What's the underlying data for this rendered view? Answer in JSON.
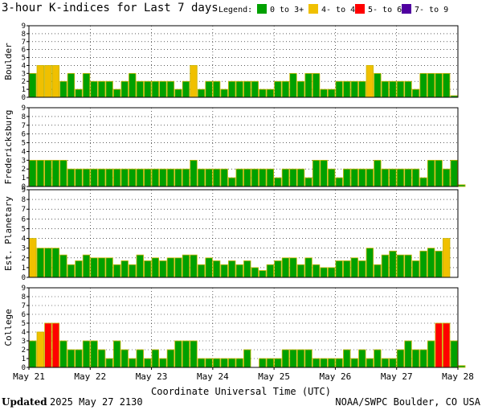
{
  "title": "3-hour K-indices for Last 7 days",
  "legend": {
    "label": "Legend:",
    "items": [
      {
        "label": "0 to 3+",
        "color": "#00a000"
      },
      {
        "label": "4- to 4+",
        "color": "#f0c000"
      },
      {
        "label": "5- to 6+",
        "color": "#ff0000"
      },
      {
        "label": "7- to 9",
        "color": "#5000a0"
      }
    ]
  },
  "colors": {
    "quiet": "#00a000",
    "active": "#f0c000",
    "storm": "#ff0000",
    "severe": "#5000a0",
    "bar_outline": "#c8b400",
    "grid": "#000000"
  },
  "xaxis": {
    "label": "Coordinate Universal Time (UTC)",
    "ticks": [
      "May 21",
      "May 22",
      "May 23",
      "May 24",
      "May 25",
      "May 26",
      "May 27",
      "May 28"
    ]
  },
  "footer": {
    "updated_label": "Updated",
    "updated_value": "2025 May 27 2130",
    "source": "NOAA/SWPC Boulder, CO USA"
  },
  "chart_data": [
    {
      "type": "bar",
      "title": "Boulder",
      "ylabel": "Boulder",
      "ylim": [
        0,
        9
      ],
      "yticks": [
        0,
        1,
        2,
        3,
        4,
        5,
        6,
        7,
        8,
        9
      ],
      "interval_hours": 3,
      "start": "May 21 00 UTC",
      "values": [
        3,
        4,
        4,
        4,
        2,
        3,
        1,
        3,
        2,
        2,
        2,
        1,
        2,
        3,
        2,
        2,
        2,
        2,
        2,
        1,
        2,
        4,
        1,
        2,
        2,
        1,
        2,
        2,
        2,
        2,
        1,
        1,
        2,
        2,
        3,
        2,
        3,
        3,
        1,
        1,
        2,
        2,
        2,
        2,
        4,
        3,
        2,
        2,
        2,
        2,
        1,
        3,
        3,
        3,
        3,
        0.2
      ]
    },
    {
      "type": "bar",
      "title": "Fredericksburg",
      "ylabel": "Fredericksburg",
      "ylim": [
        0,
        9
      ],
      "yticks": [
        0,
        1,
        2,
        3,
        4,
        5,
        6,
        7,
        8,
        9
      ],
      "interval_hours": 3,
      "start": "May 21 00 UTC",
      "values": [
        3,
        3,
        3,
        3,
        3,
        2,
        2,
        2,
        2,
        2,
        2,
        2,
        2,
        2,
        2,
        2,
        2,
        2,
        2,
        2,
        2,
        3,
        2,
        2,
        2,
        2,
        1,
        2,
        2,
        2,
        2,
        2,
        1,
        2,
        2,
        2,
        1,
        3,
        3,
        2,
        1,
        2,
        2,
        2,
        2,
        3,
        2,
        2,
        2,
        2,
        2,
        1,
        3,
        3,
        2,
        3,
        0.2
      ]
    },
    {
      "type": "bar",
      "title": "Est. Planetary",
      "ylabel": "Est. Planetary",
      "ylim": [
        0,
        9
      ],
      "yticks": [
        0,
        1,
        2,
        3,
        4,
        5,
        6,
        7,
        8,
        9
      ],
      "interval_hours": 3,
      "start": "May 21 00 UTC",
      "values": [
        4,
        3,
        3,
        3,
        2.3,
        1.3,
        1.7,
        2.3,
        2,
        2,
        2,
        1.3,
        1.7,
        1.3,
        2.3,
        1.7,
        2,
        1.7,
        2,
        2,
        2.3,
        2.3,
        1.3,
        2,
        1.7,
        1.3,
        1.7,
        1.3,
        1.7,
        1,
        0.7,
        1.3,
        1.7,
        2,
        2,
        1.3,
        2,
        1.3,
        1,
        1,
        1.7,
        1.7,
        2,
        1.7,
        3,
        1.3,
        2.3,
        2.7,
        2.3,
        2.3,
        1.7,
        2.7,
        3,
        2.7,
        4,
        0
      ]
    },
    {
      "type": "bar",
      "title": "College",
      "ylabel": "College",
      "ylim": [
        0,
        9
      ],
      "yticks": [
        0,
        1,
        2,
        3,
        4,
        5,
        6,
        7,
        8,
        9
      ],
      "interval_hours": 3,
      "start": "May 21 00 UTC",
      "values": [
        3,
        4,
        5,
        5,
        3,
        2,
        2,
        3,
        3,
        2,
        1,
        3,
        2,
        1,
        2,
        1,
        2,
        1,
        2,
        3,
        3,
        3,
        1,
        1,
        1,
        1,
        1,
        1,
        2,
        0,
        1,
        1,
        1,
        2,
        2,
        2,
        2,
        1,
        1,
        1,
        1,
        2,
        1,
        2,
        1,
        2,
        1,
        1,
        2,
        3,
        2,
        2,
        3,
        5,
        5,
        3,
        0.2
      ]
    }
  ]
}
